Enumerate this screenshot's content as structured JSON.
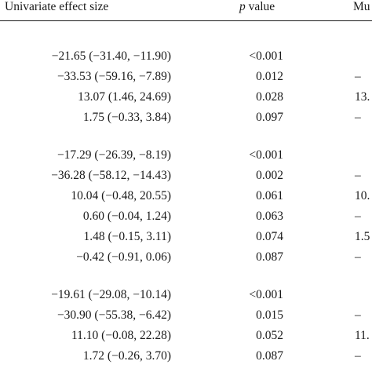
{
  "header": {
    "effect_label": "Univariate effect size",
    "p_label_italic": "p",
    "p_label_rest": " value",
    "multi_label": "Mu"
  },
  "groups": [
    {
      "rows": [
        {
          "effect": "−21.65 (−31.40, −11.90)",
          "p": "<0.001",
          "multi": ""
        },
        {
          "effect": "−33.53 (−59.16, −7.89)",
          "p": "0.012",
          "multi": "–"
        },
        {
          "effect": "13.07 (1.46, 24.69)",
          "p": "0.028",
          "multi": "13."
        },
        {
          "effect": "1.75 (−0.33, 3.84)",
          "p": "0.097",
          "multi": "–"
        }
      ]
    },
    {
      "rows": [
        {
          "effect": "−17.29 (−26.39, −8.19)",
          "p": "<0.001",
          "multi": ""
        },
        {
          "effect": "−36.28 (−58.12, −14.43)",
          "p": "0.002",
          "multi": "–"
        },
        {
          "effect": "10.04 (−0.48, 20.55)",
          "p": "0.061",
          "multi": "10."
        },
        {
          "effect": "0.60 (−0.04, 1.24)",
          "p": "0.063",
          "multi": "–"
        },
        {
          "effect": "1.48 (−0.15, 3.11)",
          "p": "0.074",
          "multi": "1.5"
        },
        {
          "effect": "−0.42 (−0.91, 0.06)",
          "p": "0.087",
          "multi": "–"
        }
      ]
    },
    {
      "rows": [
        {
          "effect": "−19.61 (−29.08, −10.14)",
          "p": "<0.001",
          "multi": ""
        },
        {
          "effect": "−30.90 (−55.38, −6.42)",
          "p": "0.015",
          "multi": "–"
        },
        {
          "effect": "11.10 (−0.08, 22.28)",
          "p": "0.052",
          "multi": "11."
        },
        {
          "effect": "1.72 (−0.26, 3.70)",
          "p": "0.087",
          "multi": "–"
        }
      ]
    }
  ]
}
